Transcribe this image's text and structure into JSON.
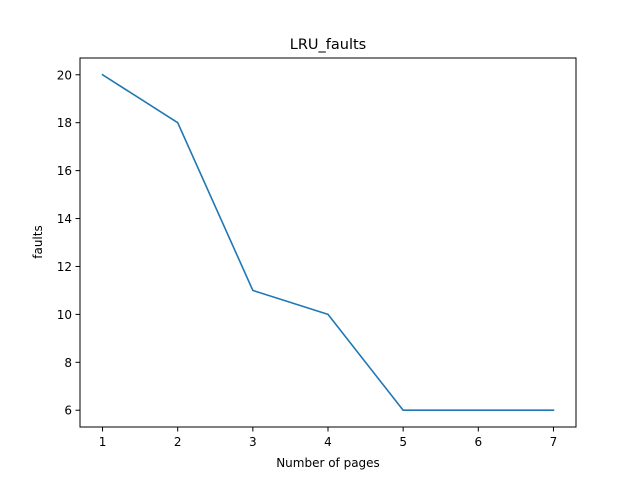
{
  "chart_data": {
    "type": "line",
    "title": "LRU_faults",
    "xlabel": "Number of pages",
    "ylabel": "faults",
    "x": [
      1,
      2,
      3,
      4,
      5,
      6,
      7
    ],
    "series": [
      {
        "values": [
          20,
          18,
          11,
          10,
          6,
          6,
          6
        ],
        "color": "#1f77b4"
      }
    ],
    "xticks": [
      1,
      2,
      3,
      4,
      5,
      6,
      7
    ],
    "yticks": [
      6,
      8,
      10,
      12,
      14,
      16,
      18,
      20
    ],
    "xlim": [
      0.7,
      7.3
    ],
    "ylim": [
      5.3,
      20.7
    ],
    "grid": false,
    "legend": "none"
  }
}
